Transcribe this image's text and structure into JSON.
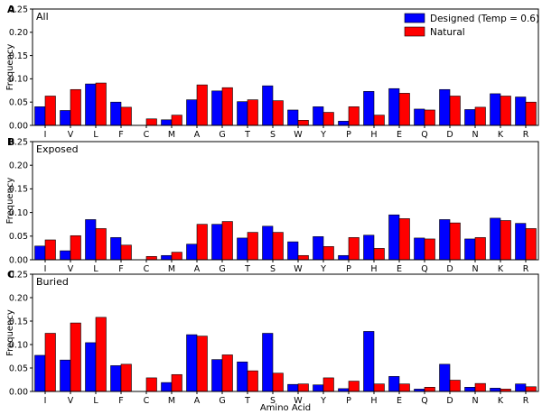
{
  "chart_data": {
    "type": "bar",
    "xlabel": "Amino Acid",
    "ylabel": "Frequency",
    "ylim": [
      0,
      0.25
    ],
    "yticks": [
      "0.00",
      "0.05",
      "0.10",
      "0.15",
      "0.20",
      "0.25"
    ],
    "legend": {
      "placement": "top-right",
      "entries": [
        "Designed (Temp = 0.6)",
        "Natural"
      ]
    },
    "colors": {
      "Designed (Temp = 0.6)": "#0000ff",
      "Natural": "#ff0000"
    },
    "categories": [
      "I",
      "V",
      "L",
      "F",
      "C",
      "M",
      "A",
      "G",
      "T",
      "S",
      "W",
      "Y",
      "P",
      "H",
      "E",
      "Q",
      "D",
      "N",
      "K",
      "R"
    ],
    "panels": [
      {
        "letter": "A",
        "title": "All",
        "series": [
          {
            "name": "Designed (Temp = 0.6)",
            "values": [
              0.04,
              0.032,
              0.089,
              0.05,
              0.0,
              0.012,
              0.055,
              0.074,
              0.051,
              0.085,
              0.033,
              0.04,
              0.009,
              0.073,
              0.079,
              0.035,
              0.077,
              0.034,
              0.068,
              0.061
            ]
          },
          {
            "name": "Natural",
            "values": [
              0.063,
              0.077,
              0.091,
              0.039,
              0.014,
              0.022,
              0.087,
              0.081,
              0.055,
              0.053,
              0.011,
              0.028,
              0.04,
              0.022,
              0.069,
              0.033,
              0.063,
              0.039,
              0.063,
              0.05
            ]
          }
        ]
      },
      {
        "letter": "B",
        "title": "Exposed",
        "series": [
          {
            "name": "Designed (Temp = 0.6)",
            "values": [
              0.029,
              0.019,
              0.085,
              0.047,
              0.0,
              0.009,
              0.033,
              0.075,
              0.046,
              0.071,
              0.038,
              0.049,
              0.009,
              0.052,
              0.095,
              0.046,
              0.085,
              0.044,
              0.088,
              0.077
            ]
          },
          {
            "name": "Natural",
            "values": [
              0.042,
              0.051,
              0.066,
              0.031,
              0.007,
              0.016,
              0.075,
              0.081,
              0.058,
              0.058,
              0.009,
              0.028,
              0.047,
              0.024,
              0.087,
              0.044,
              0.078,
              0.047,
              0.083,
              0.066
            ]
          }
        ]
      },
      {
        "letter": "C",
        "title": "Buried",
        "series": [
          {
            "name": "Designed (Temp = 0.6)",
            "values": [
              0.077,
              0.067,
              0.104,
              0.055,
              0.0,
              0.019,
              0.121,
              0.068,
              0.063,
              0.124,
              0.015,
              0.014,
              0.006,
              0.128,
              0.032,
              0.005,
              0.058,
              0.009,
              0.007,
              0.016
            ]
          },
          {
            "name": "Natural",
            "values": [
              0.124,
              0.146,
              0.158,
              0.058,
              0.029,
              0.036,
              0.118,
              0.078,
              0.044,
              0.039,
              0.016,
              0.029,
              0.022,
              0.016,
              0.016,
              0.009,
              0.024,
              0.017,
              0.005,
              0.01
            ]
          }
        ]
      }
    ]
  }
}
